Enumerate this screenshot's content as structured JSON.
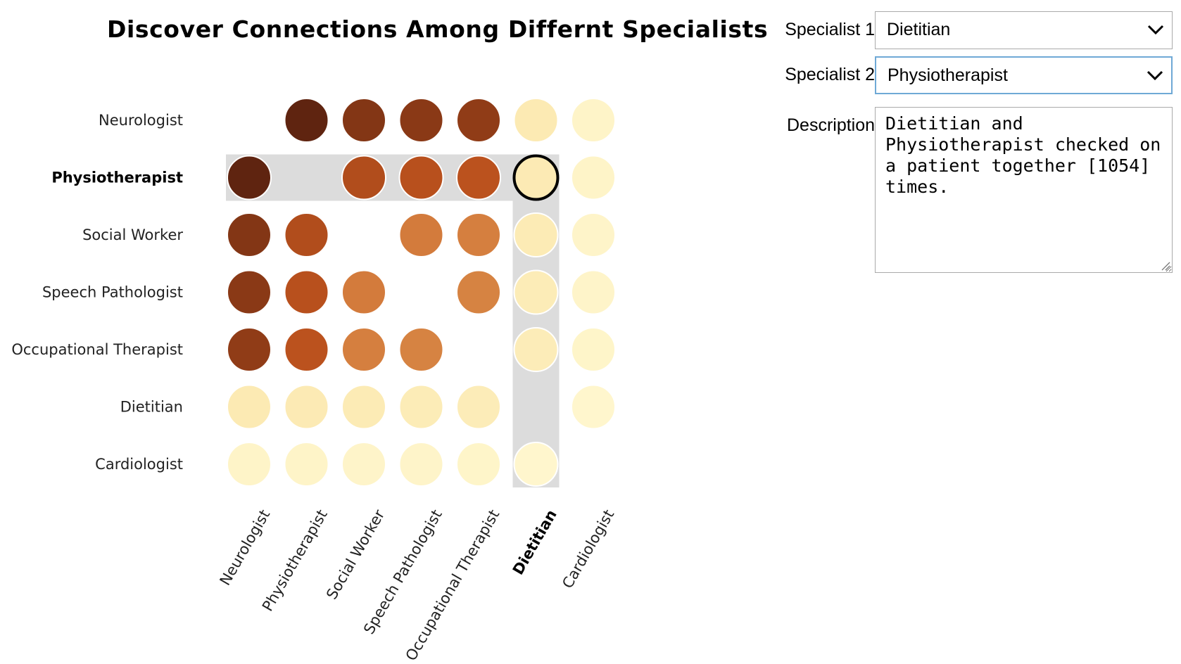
{
  "chart_data": {
    "type": "heatmap",
    "title": "Discover Connections Among Differnt Specialists",
    "rows": [
      "Neurologist",
      "Physiotherapist",
      "Social Worker",
      "Speech Pathologist",
      "Occupational Therapist",
      "Dietitian",
      "Cardiologist"
    ],
    "columns": [
      "Neurologist",
      "Physiotherapist",
      "Social Worker",
      "Speech Pathologist",
      "Occupational Therapist",
      "Dietitian",
      "Cardiologist"
    ],
    "values": [
      [
        null,
        9200,
        8100,
        7900,
        7700,
        1100,
        300
      ],
      [
        9200,
        null,
        6700,
        6500,
        6400,
        1054,
        300
      ],
      [
        8100,
        6700,
        null,
        5200,
        5100,
        1000,
        280
      ],
      [
        7900,
        6500,
        5200,
        null,
        5000,
        950,
        270
      ],
      [
        7700,
        6400,
        5100,
        5000,
        null,
        900,
        260
      ],
      [
        1100,
        1054,
        1000,
        950,
        900,
        null,
        120
      ],
      [
        300,
        300,
        280,
        270,
        260,
        120,
        null
      ]
    ],
    "selected_row": "Physiotherapist",
    "selected_column": "Dietitian",
    "color_scale": [
      "#fff8d0",
      "#f6d07e",
      "#c4561f",
      "#5f2410"
    ]
  },
  "controls": {
    "specialist1_label": "Specialist 1:",
    "specialist1_value": "Dietitian",
    "specialist2_label": "Specialist 2:",
    "specialist2_value": "Physiotherapist",
    "description_label": "Description:",
    "description_text": "Dietitian and Physiotherapist checked on a patient together [1054] times."
  },
  "icons": {
    "dropdown": "chevron-down-icon",
    "resize": "resize-grip-icon"
  },
  "colors": {
    "highlight_band": "#dcdcdc",
    "select_focus_border": "#6fa9d6",
    "select_border": "#aaaaaa"
  }
}
